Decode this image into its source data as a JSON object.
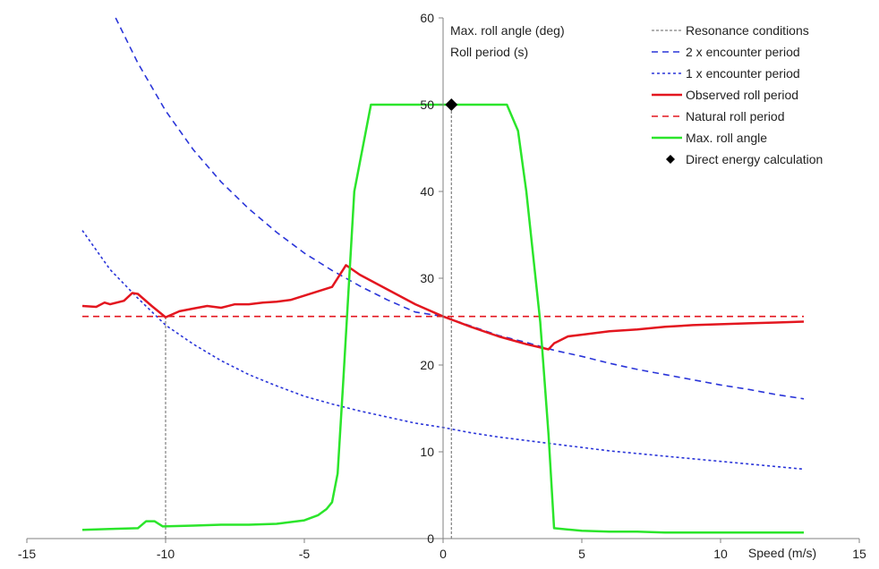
{
  "chart_data": {
    "type": "line",
    "title": "",
    "xlabel": "Speed (m/s)",
    "ylabel_lines": [
      "Max. roll angle (deg)",
      "Roll period (s)"
    ],
    "xlim": [
      -15,
      15
    ],
    "ylim": [
      0,
      60
    ],
    "x_ticks": [
      -15,
      -10,
      -5,
      0,
      5,
      10,
      15
    ],
    "y_ticks": [
      0,
      10,
      20,
      30,
      40,
      50,
      60
    ],
    "grid": false,
    "legend_position": "top-right",
    "series": [
      {
        "name": "Resonance conditions",
        "color": "#808080",
        "style": "dashed-fine",
        "segments": [
          [
            [
              -10,
              0
            ],
            [
              -10,
              25.6
            ]
          ],
          [
            [
              0.3,
              0
            ],
            [
              0.3,
              50
            ]
          ]
        ]
      },
      {
        "name": "2 x encounter period",
        "color": "#2a35d9",
        "style": "dashed",
        "x": [
          -11.8,
          -11,
          -10,
          -9,
          -8,
          -7,
          -6,
          -5,
          -4,
          -3,
          -2,
          -1,
          0,
          1,
          2,
          3,
          4,
          5,
          6,
          7,
          8,
          9,
          10,
          11,
          12,
          13
        ],
        "y": [
          60,
          54.8,
          49.3,
          44.8,
          41.1,
          38.0,
          35.3,
          32.9,
          30.9,
          29.1,
          27.5,
          26.1,
          25.6,
          24.5,
          23.4,
          22.6,
          21.7,
          21.0,
          20.2,
          19.5,
          18.9,
          18.3,
          17.7,
          17.2,
          16.6,
          16.1
        ]
      },
      {
        "name": "1 x encounter period",
        "color": "#2a35d9",
        "style": "dotted",
        "x": [
          -13,
          -12,
          -11,
          -10,
          -9,
          -8,
          -7,
          -6,
          -5,
          -4,
          -3,
          -2,
          -1,
          0,
          1,
          2,
          3,
          4,
          5,
          6,
          7,
          8,
          9,
          10,
          11,
          12,
          13
        ],
        "y": [
          35.5,
          31.0,
          27.7,
          24.6,
          22.4,
          20.5,
          18.9,
          17.6,
          16.4,
          15.5,
          14.7,
          14.0,
          13.3,
          12.8,
          12.2,
          11.7,
          11.3,
          10.9,
          10.5,
          10.1,
          9.8,
          9.5,
          9.2,
          8.9,
          8.6,
          8.3,
          8.0
        ]
      },
      {
        "name": "Observed roll period",
        "color": "#e3161f",
        "style": "solid",
        "x": [
          -13,
          -12.5,
          -12.2,
          -12,
          -11.5,
          -11.2,
          -11,
          -10.5,
          -10,
          -9.5,
          -9,
          -8.5,
          -8,
          -7.5,
          -7,
          -6.5,
          -6,
          -5.5,
          -5,
          -4.5,
          -4,
          -3.5,
          -3,
          -2,
          -1,
          0,
          1,
          2,
          3,
          3.8,
          4,
          4.5,
          5,
          6,
          7,
          8,
          9,
          10,
          11,
          12,
          13
        ],
        "y": [
          26.8,
          26.7,
          27.2,
          27.0,
          27.4,
          28.3,
          28.2,
          26.8,
          25.5,
          26.2,
          26.5,
          26.8,
          26.6,
          27.0,
          27.0,
          27.2,
          27.3,
          27.5,
          28.0,
          28.5,
          29.0,
          31.5,
          30.4,
          28.7,
          27.0,
          25.6,
          24.4,
          23.3,
          22.4,
          21.8,
          22.5,
          23.3,
          23.5,
          23.9,
          24.1,
          24.4,
          24.6,
          24.7,
          24.8,
          24.9,
          25.0
        ]
      },
      {
        "name": "Natural roll period",
        "color": "#e3161f",
        "style": "dashed",
        "x": [
          -13,
          13
        ],
        "y": [
          25.6,
          25.6
        ]
      },
      {
        "name": "Max. roll angle",
        "color": "#2be52b",
        "style": "solid",
        "x": [
          -13,
          -12,
          -11,
          -10.7,
          -10.4,
          -10.1,
          -9,
          -8,
          -7,
          -6,
          -5,
          -4.5,
          -4.2,
          -4,
          -3.8,
          -3.6,
          -3.2,
          -2.6,
          -2,
          -1,
          0,
          1,
          2,
          2.3,
          2.7,
          3.0,
          3.5,
          3.8,
          4,
          5,
          6,
          7,
          8,
          9,
          10,
          11,
          12,
          13
        ],
        "y": [
          1.0,
          1.1,
          1.2,
          2.0,
          2.0,
          1.4,
          1.5,
          1.6,
          1.6,
          1.7,
          2.1,
          2.7,
          3.4,
          4.2,
          7.5,
          18,
          40,
          50,
          50,
          50,
          50,
          50,
          50,
          50,
          47,
          40,
          25,
          12,
          1.2,
          0.9,
          0.8,
          0.8,
          0.7,
          0.7,
          0.7,
          0.7,
          0.7,
          0.7
        ]
      },
      {
        "name": "Direct energy calculation",
        "color": "#000000",
        "style": "marker-diamond",
        "x": [
          0.3
        ],
        "y": [
          50
        ]
      }
    ]
  }
}
